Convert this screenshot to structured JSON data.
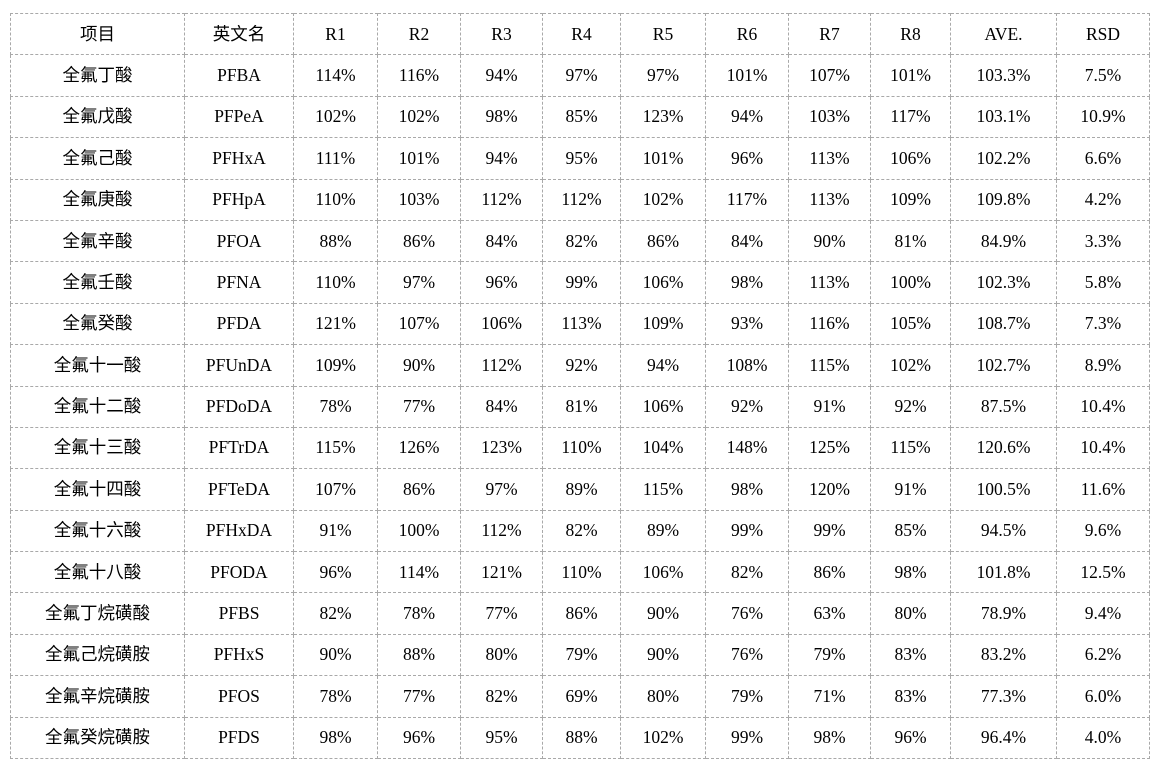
{
  "page": {
    "background_color": "#ffffff",
    "text_color": "#000000",
    "border_color": "#a9a9a9",
    "border_style": "dashed"
  },
  "table": {
    "columns": [
      "项目",
      "英文名",
      "R1",
      "R2",
      "R3",
      "R4",
      "R5",
      "R6",
      "R7",
      "R8",
      "AVE.",
      "RSD"
    ],
    "rows": [
      [
        "全氟丁酸",
        "PFBA",
        "114%",
        "116%",
        "94%",
        "97%",
        "97%",
        "101%",
        "107%",
        "101%",
        "103.3%",
        "7.5%"
      ],
      [
        "全氟戊酸",
        "PFPeA",
        "102%",
        "102%",
        "98%",
        "85%",
        "123%",
        "94%",
        "103%",
        "117%",
        "103.1%",
        "10.9%"
      ],
      [
        "全氟己酸",
        "PFHxA",
        "111%",
        "101%",
        "94%",
        "95%",
        "101%",
        "96%",
        "113%",
        "106%",
        "102.2%",
        "6.6%"
      ],
      [
        "全氟庚酸",
        "PFHpA",
        "110%",
        "103%",
        "112%",
        "112%",
        "102%",
        "117%",
        "113%",
        "109%",
        "109.8%",
        "4.2%"
      ],
      [
        "全氟辛酸",
        "PFOA",
        "88%",
        "86%",
        "84%",
        "82%",
        "86%",
        "84%",
        "90%",
        "81%",
        "84.9%",
        "3.3%"
      ],
      [
        "全氟壬酸",
        "PFNA",
        "110%",
        "97%",
        "96%",
        "99%",
        "106%",
        "98%",
        "113%",
        "100%",
        "102.3%",
        "5.8%"
      ],
      [
        "全氟癸酸",
        "PFDA",
        "121%",
        "107%",
        "106%",
        "113%",
        "109%",
        "93%",
        "116%",
        "105%",
        "108.7%",
        "7.3%"
      ],
      [
        "全氟十一酸",
        "PFUnDA",
        "109%",
        "90%",
        "112%",
        "92%",
        "94%",
        "108%",
        "115%",
        "102%",
        "102.7%",
        "8.9%"
      ],
      [
        "全氟十二酸",
        "PFDoDA",
        "78%",
        "77%",
        "84%",
        "81%",
        "106%",
        "92%",
        "91%",
        "92%",
        "87.5%",
        "10.4%"
      ],
      [
        "全氟十三酸",
        "PFTrDA",
        "115%",
        "126%",
        "123%",
        "110%",
        "104%",
        "148%",
        "125%",
        "115%",
        "120.6%",
        "10.4%"
      ],
      [
        "全氟十四酸",
        "PFTeDA",
        "107%",
        "86%",
        "97%",
        "89%",
        "115%",
        "98%",
        "120%",
        "91%",
        "100.5%",
        "11.6%"
      ],
      [
        "全氟十六酸",
        "PFHxDA",
        "91%",
        "100%",
        "112%",
        "82%",
        "89%",
        "99%",
        "99%",
        "85%",
        "94.5%",
        "9.6%"
      ],
      [
        "全氟十八酸",
        "PFODA",
        "96%",
        "114%",
        "121%",
        "110%",
        "106%",
        "82%",
        "86%",
        "98%",
        "101.8%",
        "12.5%"
      ],
      [
        "全氟丁烷磺酸",
        "PFBS",
        "82%",
        "78%",
        "77%",
        "86%",
        "90%",
        "76%",
        "63%",
        "80%",
        "78.9%",
        "9.4%"
      ],
      [
        "全氟己烷磺胺",
        "PFHxS",
        "90%",
        "88%",
        "80%",
        "79%",
        "90%",
        "76%",
        "79%",
        "83%",
        "83.2%",
        "6.2%"
      ],
      [
        "全氟辛烷磺胺",
        "PFOS",
        "78%",
        "77%",
        "82%",
        "69%",
        "80%",
        "79%",
        "71%",
        "83%",
        "77.3%",
        "6.0%"
      ],
      [
        "全氟癸烷磺胺",
        "PFDS",
        "98%",
        "96%",
        "95%",
        "88%",
        "102%",
        "99%",
        "98%",
        "96%",
        "96.4%",
        "4.0%"
      ]
    ]
  }
}
